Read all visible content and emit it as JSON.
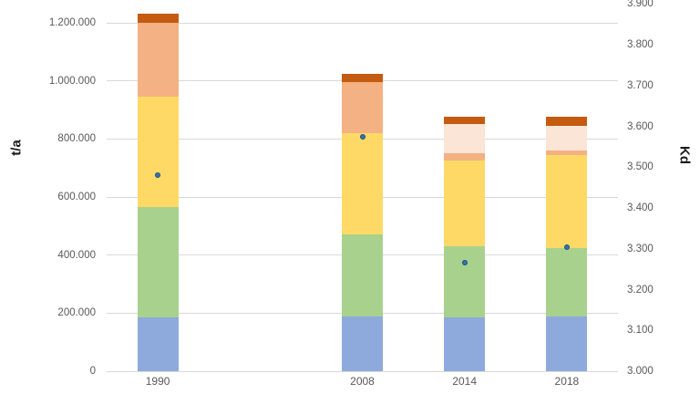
{
  "chart_data": {
    "type": "bar",
    "subtype": "stacked-columns-with-scatter-overlay",
    "title": "",
    "legend": "none",
    "grid": "horizontal gridlines at left-axis ticks, color #D9D9D9",
    "categories": [
      "1990",
      "2008",
      "2014",
      "2018"
    ],
    "category_slot_count": 5,
    "category_slot_index": [
      0,
      2,
      3,
      4
    ],
    "series": [
      {
        "name": "segment-blue",
        "color": "#8EAADC",
        "values": [
          185000,
          190000,
          185000,
          190000
        ]
      },
      {
        "name": "segment-green",
        "color": "#A9D18E",
        "values": [
          380000,
          280000,
          245000,
          235000
        ]
      },
      {
        "name": "segment-yellow",
        "color": "#FFD966",
        "values": [
          380000,
          350000,
          295000,
          320000
        ]
      },
      {
        "name": "segment-salmon",
        "color": "#F4B183",
        "values": [
          255000,
          175000,
          25000,
          15000
        ]
      },
      {
        "name": "segment-cream",
        "color": "#FBE5D6",
        "values": [
          0,
          0,
          100000,
          85000
        ]
      },
      {
        "name": "segment-dark-orange",
        "color": "#C55A11",
        "values": [
          30000,
          30000,
          25000,
          30000
        ]
      }
    ],
    "totals": [
      1230000,
      1025000,
      875000,
      875000
    ],
    "scatter_series": {
      "name": "kd-dots",
      "axis": "right",
      "fill_color": "#2E75B6",
      "border_color": "#1F4E79",
      "values": [
        3480,
        3575,
        3265,
        3305
      ]
    },
    "left_axis": {
      "title": "t/a",
      "min": 0,
      "max": 1200000,
      "tick_step": 200000,
      "tick_labels": [
        "0",
        "200.000",
        "400.000",
        "600.000",
        "800.000",
        "1.000.000",
        "1.200.000"
      ]
    },
    "right_axis": {
      "title": "Kd",
      "min": 3000,
      "max": 3900,
      "tick_step": 100,
      "tick_labels": [
        "3.000",
        "3.100",
        "3.200",
        "3.300",
        "3.400",
        "3.500",
        "3.600",
        "3.700",
        "3.800",
        "3.900"
      ]
    },
    "colors": {
      "gridline": "#d9d9d9",
      "tick_text": "#595959",
      "axis_title_text": "#1a1a1a",
      "background": "#ffffff"
    }
  }
}
